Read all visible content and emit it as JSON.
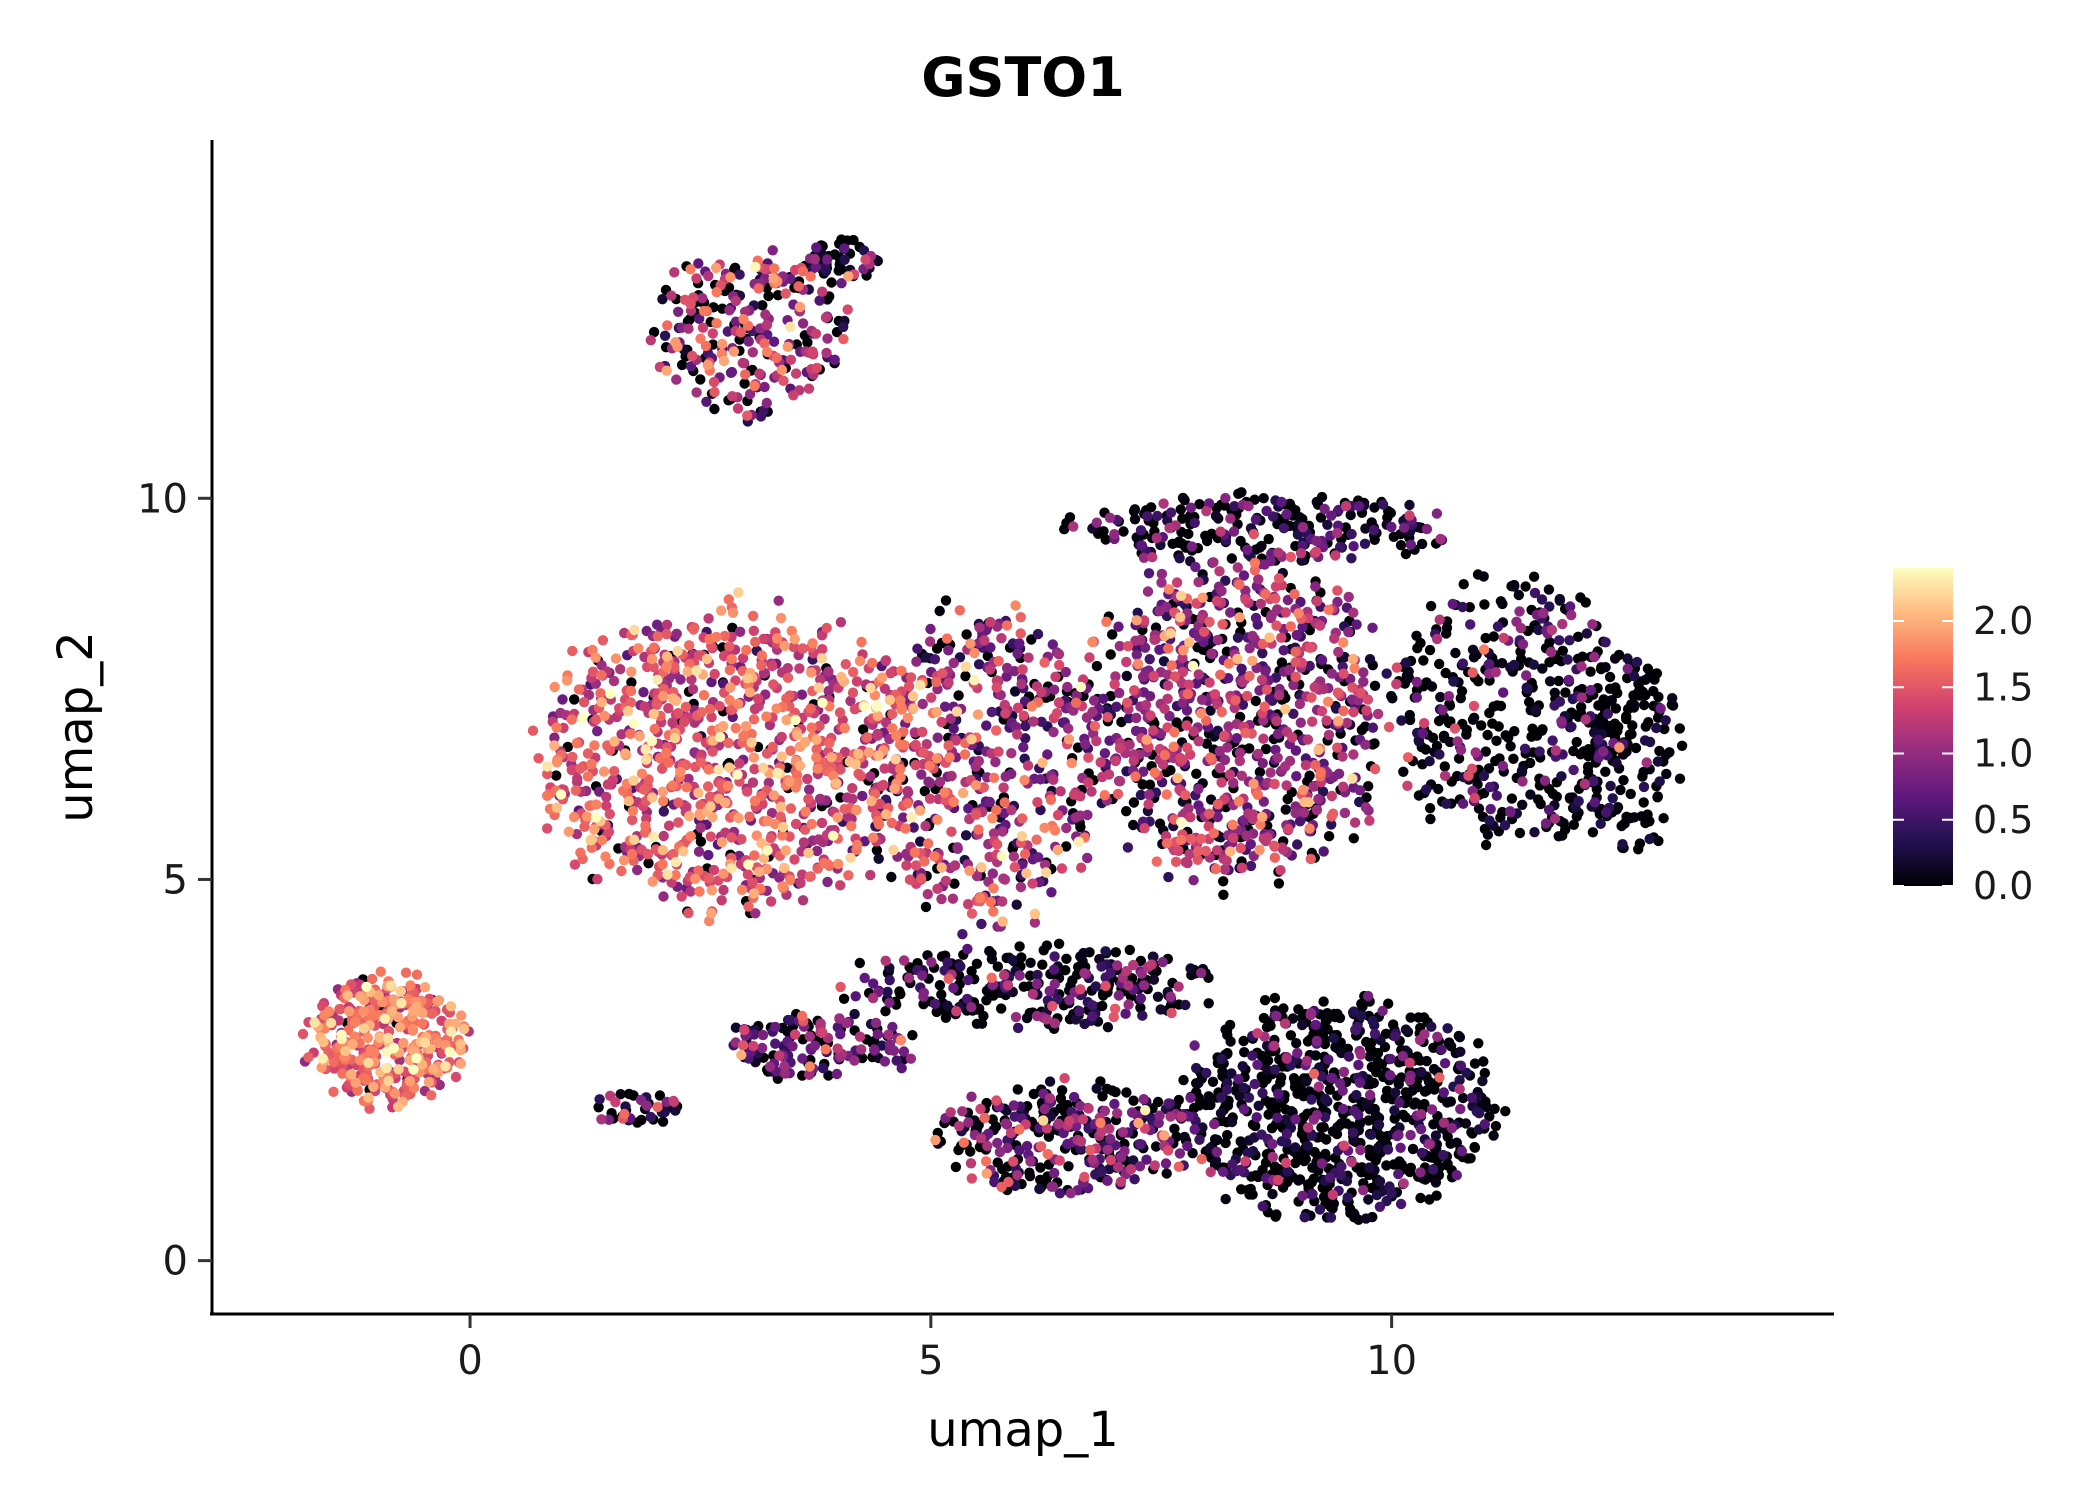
{
  "chart_data": {
    "type": "scatter",
    "title": "GSTO1",
    "xlabel": "umap_1",
    "ylabel": "umap_2",
    "xlim": [
      -2.8,
      14.8
    ],
    "ylim": [
      -0.7,
      14.7
    ],
    "x_ticks": [
      0,
      5,
      10
    ],
    "x_tick_labels": [
      "0",
      "5",
      "10"
    ],
    "y_ticks": [
      0,
      5,
      10
    ],
    "y_tick_labels": [
      "0",
      "5",
      "10"
    ],
    "color_scale": {
      "name": "magma",
      "min": 0.0,
      "max": 2.4,
      "ticks": [
        0.0,
        0.5,
        1.0,
        1.5,
        2.0
      ],
      "tick_labels": [
        "0.0",
        "0.5",
        "1.0",
        "1.5",
        "2.0"
      ],
      "stops": [
        "#000004",
        "#221150",
        "#5f187f",
        "#982d80",
        "#d3436e",
        "#f8765c",
        "#febb81",
        "#fcfdbf"
      ]
    },
    "legend_position": "right",
    "clusters": [
      {
        "name": "left-island",
        "cx": -0.9,
        "cy": 2.9,
        "rx": 0.95,
        "ry": 0.95,
        "n": 380,
        "mean": 1.6,
        "sd": 0.35,
        "zero_frac": 0.03
      },
      {
        "name": "left-bridge",
        "cx": 1.8,
        "cy": 2.0,
        "rx": 0.6,
        "ry": 0.25,
        "n": 40,
        "mean": 0.8,
        "sd": 0.5,
        "zero_frac": 0.35
      },
      {
        "name": "upper-arm",
        "cx": 3.0,
        "cy": 12.2,
        "rx": 1.2,
        "ry": 1.2,
        "n": 260,
        "mean": 1.1,
        "sd": 0.5,
        "zero_frac": 0.25
      },
      {
        "name": "arm-tip",
        "cx": 4.0,
        "cy": 13.1,
        "rx": 0.5,
        "ry": 0.35,
        "n": 50,
        "mean": 0.5,
        "sd": 0.5,
        "zero_frac": 0.5
      },
      {
        "name": "main-left",
        "cx": 2.8,
        "cy": 6.6,
        "rx": 2.3,
        "ry": 2.2,
        "n": 1000,
        "mean": 1.45,
        "sd": 0.4,
        "zero_frac": 0.07
      },
      {
        "name": "main-center",
        "cx": 5.6,
        "cy": 6.5,
        "rx": 1.5,
        "ry": 2.3,
        "n": 550,
        "mean": 1.1,
        "sd": 0.5,
        "zero_frac": 0.15
      },
      {
        "name": "main-right",
        "cx": 8.3,
        "cy": 7.1,
        "rx": 1.8,
        "ry": 2.4,
        "n": 900,
        "mean": 1.0,
        "sd": 0.45,
        "zero_frac": 0.18
      },
      {
        "name": "far-right",
        "cx": 11.3,
        "cy": 7.2,
        "rx": 1.4,
        "ry": 1.9,
        "n": 420,
        "mean": 0.45,
        "sd": 0.45,
        "zero_frac": 0.5
      },
      {
        "name": "right-edge",
        "cx": 12.6,
        "cy": 6.6,
        "rx": 0.6,
        "ry": 1.4,
        "n": 150,
        "mean": 0.2,
        "sd": 0.3,
        "zero_frac": 0.75
      },
      {
        "name": "bottom-right",
        "cx": 9.4,
        "cy": 2.0,
        "rx": 1.9,
        "ry": 1.6,
        "n": 800,
        "mean": 0.35,
        "sd": 0.45,
        "zero_frac": 0.58
      },
      {
        "name": "bottom-band",
        "cx": 6.5,
        "cy": 1.6,
        "rx": 1.6,
        "ry": 0.8,
        "n": 330,
        "mean": 0.7,
        "sd": 0.5,
        "zero_frac": 0.32
      },
      {
        "name": "lower-left-band",
        "cx": 3.8,
        "cy": 2.8,
        "rx": 1.2,
        "ry": 0.5,
        "n": 150,
        "mean": 0.7,
        "sd": 0.5,
        "zero_frac": 0.35
      },
      {
        "name": "mid-lower",
        "cx": 6.2,
        "cy": 3.6,
        "rx": 2.3,
        "ry": 0.6,
        "n": 300,
        "mean": 0.55,
        "sd": 0.5,
        "zero_frac": 0.45
      },
      {
        "name": "top-ridge",
        "cx": 8.6,
        "cy": 9.6,
        "rx": 2.3,
        "ry": 0.5,
        "n": 250,
        "mean": 0.5,
        "sd": 0.5,
        "zero_frac": 0.45
      }
    ]
  }
}
